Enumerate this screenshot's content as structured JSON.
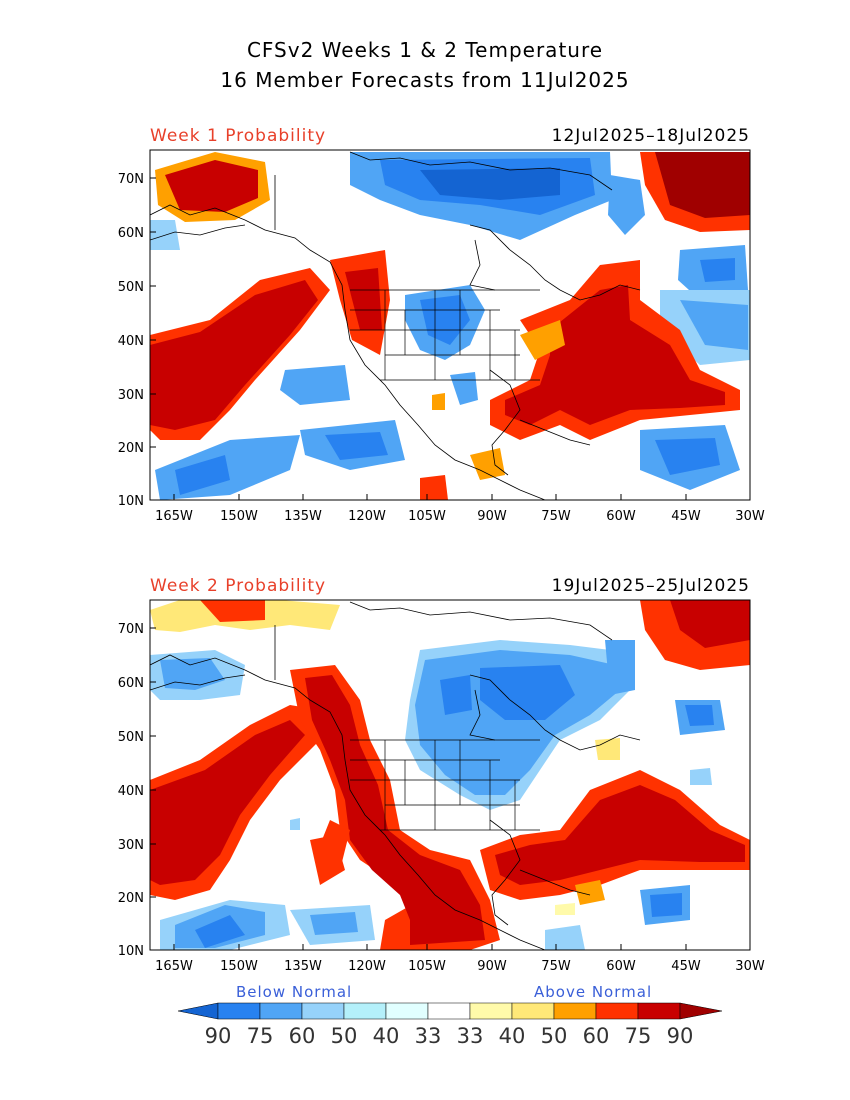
{
  "title": {
    "line1": "CFSv2 Weeks 1 & 2 Temperature",
    "line2": "16 Member Forecasts from 11Jul2025"
  },
  "panels": [
    {
      "label": "Week 1 Probability",
      "dates": "12Jul2025–18Jul2025"
    },
    {
      "label": "Week 2 Probability",
      "dates": "19Jul2025–25Jul2025"
    }
  ],
  "axes": {
    "lat_labels": [
      "70N",
      "60N",
      "50N",
      "40N",
      "30N",
      "20N",
      "10N"
    ],
    "lon_labels": [
      "165W",
      "150W",
      "135W",
      "120W",
      "105W",
      "90W",
      "75W",
      "60W",
      "45W",
      "30W"
    ]
  },
  "legend": {
    "below_label": "Below Normal",
    "above_label": "Above Normal",
    "below_color": "#3a5fd8",
    "above_color": "#3a5fd8",
    "values": [
      "90",
      "75",
      "60",
      "50",
      "40",
      "33",
      "33",
      "40",
      "50",
      "60",
      "75",
      "90"
    ],
    "colors": [
      "#1464d2",
      "#2882f0",
      "#50a5f5",
      "#96d2fa",
      "#b4f0fa",
      "#e1ffff",
      "#ffffff",
      "#fffaaa",
      "#ffe878",
      "#ffa000",
      "#ff3200",
      "#c80000",
      "#a00000"
    ]
  }
}
